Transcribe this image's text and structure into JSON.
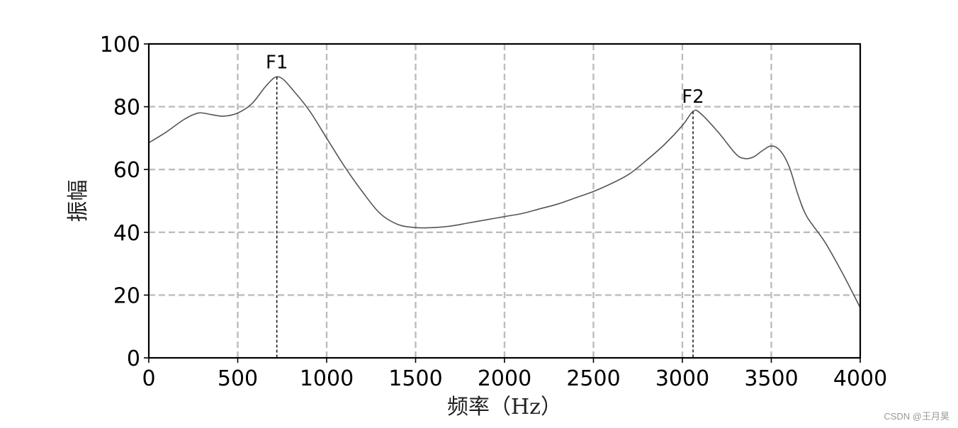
{
  "chart_data": {
    "type": "line",
    "title": "",
    "xlabel": "频率（Hz）",
    "ylabel": "振幅",
    "xlim": [
      0,
      4000
    ],
    "ylim": [
      0,
      100
    ],
    "xticks": [
      0,
      500,
      1000,
      1500,
      2000,
      2500,
      3000,
      3500,
      4000
    ],
    "yticks": [
      0,
      20,
      40,
      60,
      80,
      100
    ],
    "grid": true,
    "series": [
      {
        "color": "#555555",
        "x": [
          0,
          100,
          200,
          280,
          350,
          420,
          500,
          580,
          650,
          700,
          730,
          760,
          800,
          900,
          1000,
          1100,
          1200,
          1300,
          1400,
          1500,
          1600,
          1700,
          1800,
          1900,
          2000,
          2100,
          2200,
          2300,
          2400,
          2500,
          2600,
          2700,
          2800,
          2900,
          3000,
          3060,
          3100,
          3200,
          3300,
          3350,
          3400,
          3450,
          3500,
          3550,
          3600,
          3650,
          3700,
          3800,
          3900,
          4000
        ],
        "y": [
          68.5,
          72,
          76,
          78,
          77.5,
          77,
          78,
          81,
          86,
          89,
          89.5,
          88.5,
          86,
          79,
          70,
          61,
          53,
          46,
          42.5,
          41.5,
          41.5,
          42,
          43,
          44,
          45,
          46,
          47.5,
          49,
          51,
          53,
          55.5,
          58.5,
          63,
          68,
          74,
          78.5,
          78,
          72,
          65,
          63.5,
          64,
          66,
          67.5,
          66,
          61,
          52,
          45,
          37,
          27,
          16
        ]
      }
    ],
    "annotations": [
      {
        "label": "F1",
        "x": 720,
        "y": 89.5
      },
      {
        "label": "F2",
        "x": 3060,
        "y": 78.5
      }
    ]
  },
  "watermark": "CSDN @王月昊"
}
